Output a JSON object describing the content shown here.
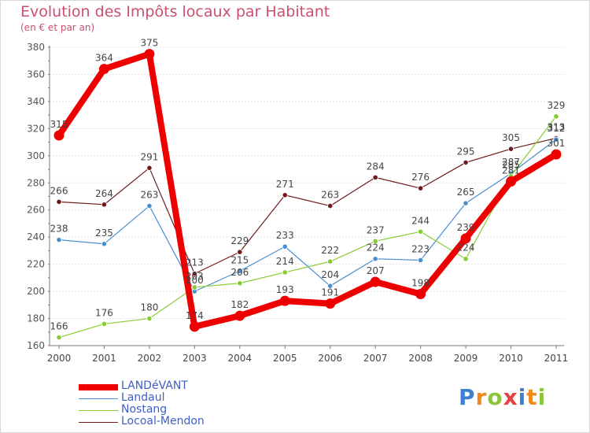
{
  "header": {
    "title": "Evolution des Impôts locaux par Habitant",
    "subtitle": "(en € et par an)"
  },
  "logo": {
    "text": "Proxiti"
  },
  "chart_data": {
    "type": "line",
    "title": "Evolution des Impôts locaux par Habitant",
    "subtitle": "(en € et par an)",
    "xlabel": "",
    "ylabel": "",
    "categories": [
      "2000",
      "2001",
      "2002",
      "2003",
      "2004",
      "2005",
      "2006",
      "2007",
      "2008",
      "2009",
      "2010",
      "2011"
    ],
    "ylim": [
      160,
      380
    ],
    "yticks": [
      160,
      180,
      200,
      220,
      240,
      260,
      280,
      300,
      320,
      340,
      360,
      380
    ],
    "grid": true,
    "legend_position": "bottom-left",
    "series": [
      {
        "name": "LANDéVANT",
        "color": "#ee0000",
        "values": [
          315,
          364,
          375,
          174,
          182,
          193,
          191,
          207,
          198,
          239,
          281,
          301
        ],
        "labels": [
          "315",
          "364",
          "375",
          "174",
          "182",
          "193",
          "191",
          "207",
          "198",
          "239",
          "281",
          "301"
        ]
      },
      {
        "name": "Landaul",
        "color": "#4a8fd0",
        "values": [
          238,
          235,
          263,
          200,
          215,
          233,
          204,
          224,
          223,
          265,
          287,
          312
        ],
        "labels": [
          "238",
          "235",
          "263",
          "200",
          "215",
          "233",
          "204",
          "224",
          "223",
          "265",
          "287",
          "312"
        ]
      },
      {
        "name": "Nostang",
        "color": "#88cc33",
        "values": [
          166,
          176,
          180,
          203,
          206,
          214,
          222,
          237,
          244,
          224,
          285,
          329
        ],
        "labels": [
          "166",
          "176",
          "180",
          "203",
          "206",
          "214",
          "222",
          "237",
          "244",
          "224",
          "285",
          "329"
        ]
      },
      {
        "name": "Locoal-Mendon",
        "color": "#6e1a1a",
        "values": [
          266,
          264,
          291,
          213,
          229,
          271,
          263,
          284,
          276,
          295,
          305,
          313
        ],
        "labels": [
          "266",
          "264",
          "291",
          "213",
          "229",
          "271",
          "263",
          "284",
          "276",
          "295",
          "305",
          "313"
        ]
      }
    ]
  }
}
